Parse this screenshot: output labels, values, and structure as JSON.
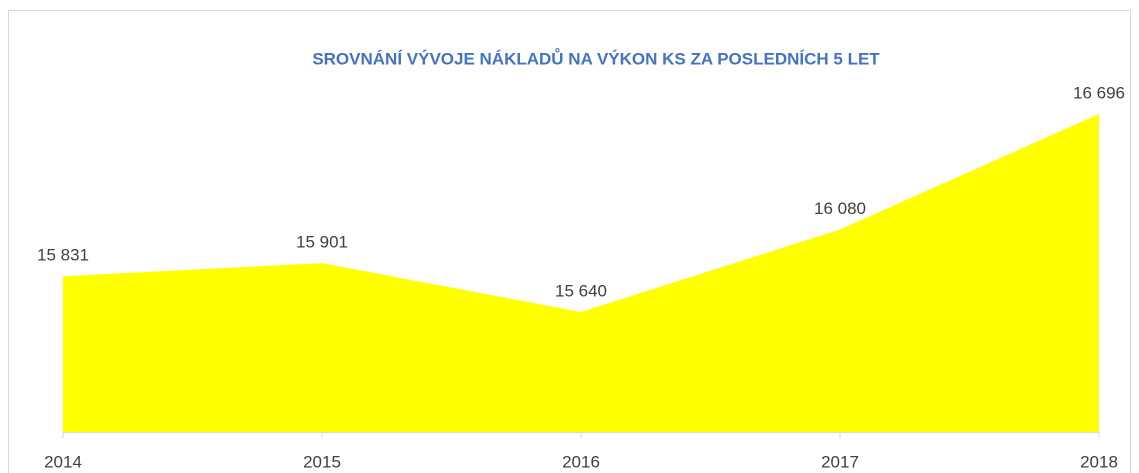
{
  "chart_data": {
    "type": "area",
    "title": "SROVNÁNÍ VÝVOJE NÁKLADŮ NA VÝKON KS ZA POSLEDNÍCH 5 LET",
    "categories": [
      "2014",
      "2015",
      "2016",
      "2017",
      "2018"
    ],
    "values": [
      15831,
      15901,
      15640,
      16080,
      16696
    ],
    "value_labels": [
      "15 831",
      "15 901",
      "15 640",
      "16 080",
      "16 696"
    ],
    "color": "#ffff00",
    "ylim": [
      15000,
      17000
    ]
  }
}
